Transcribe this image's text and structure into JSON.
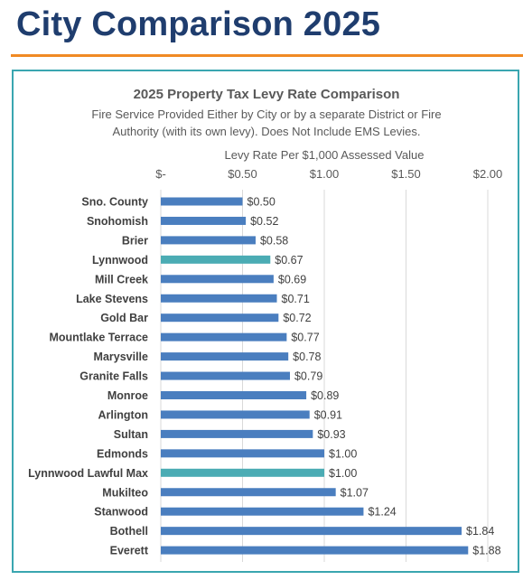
{
  "page": {
    "title": "City Comparison 2025",
    "accent_color": "#f08a24",
    "title_color": "#1f3d6e",
    "frame_color": "#3aa6b0"
  },
  "chart_data": {
    "type": "bar",
    "orientation": "horizontal",
    "title": "2025 Property Tax Levy Rate Comparison",
    "subtitle_lines": [
      "Fire Service Provided Either by City or by a separate District or Fire",
      "Authority (with its own levy).  Does Not Include EMS Levies."
    ],
    "xlabel": "Levy Rate Per $1,000 Assessed Value",
    "xlim": [
      0,
      2
    ],
    "xticks": [
      0,
      0.5,
      1,
      1.5,
      2
    ],
    "xtick_labels": [
      "$-",
      "$0.50",
      "$1.00",
      "$1.50",
      "$2.00"
    ],
    "grid": true,
    "colors": {
      "default": "#4a7ebf",
      "highlight": "#4bacb4"
    },
    "categories": [
      "Sno. County",
      "Snohomish",
      "Brier",
      "Lynnwood",
      "Mill Creek",
      "Lake Stevens",
      "Gold Bar",
      "Mountlake Terrace",
      "Marysville",
      "Granite Falls",
      "Monroe",
      "Arlington",
      "Sultan",
      "Edmonds",
      "Lynnwood Lawful Max",
      "Mukilteo",
      "Stanwood",
      "Bothell",
      "Everett"
    ],
    "values": [
      0.5,
      0.52,
      0.58,
      0.67,
      0.69,
      0.71,
      0.72,
      0.77,
      0.78,
      0.79,
      0.89,
      0.91,
      0.93,
      1.0,
      1.0,
      1.07,
      1.24,
      1.84,
      1.88
    ],
    "value_labels": [
      "$0.50",
      "$0.52",
      "$0.58",
      "$0.67",
      "$0.69",
      "$0.71",
      "$0.72",
      "$0.77",
      "$0.78",
      "$0.79",
      "$0.89",
      "$0.91",
      "$0.93",
      "$1.00",
      "$1.00",
      "$1.07",
      "$1.24",
      "$1.84",
      "$1.88"
    ],
    "highlighted": [
      "Lynnwood",
      "Lynnwood Lawful Max"
    ]
  }
}
